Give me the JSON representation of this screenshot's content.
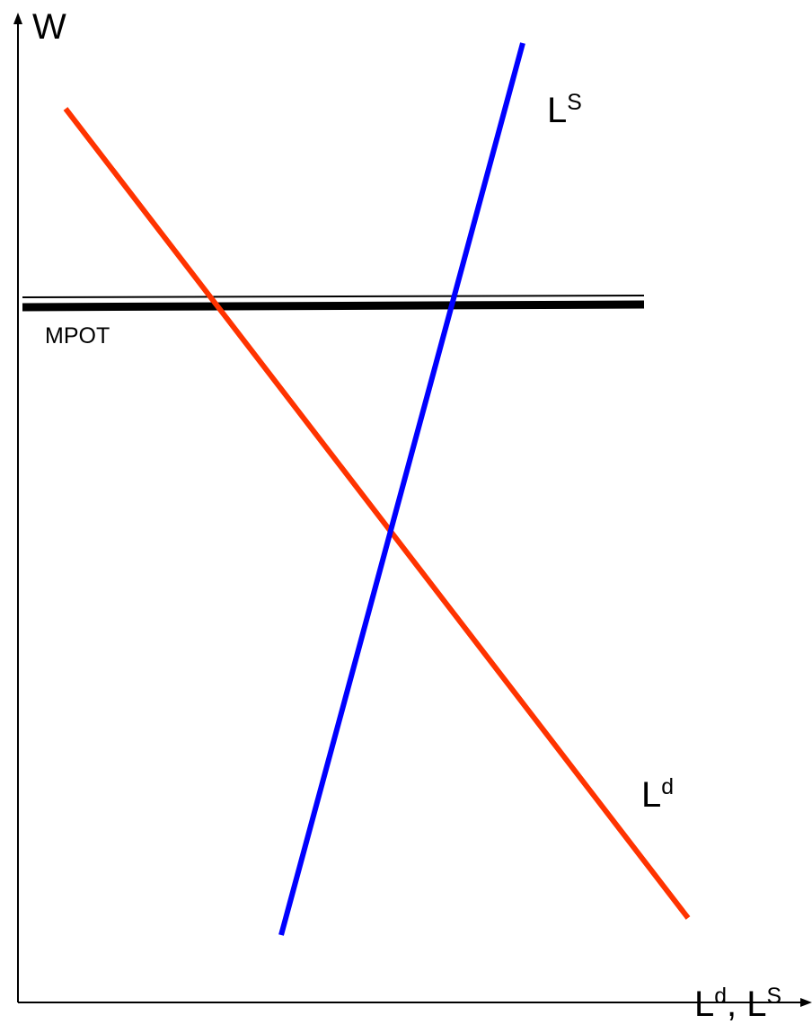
{
  "axes": {
    "y_label": "W",
    "x_label_main": "L",
    "x_label_sup": "d",
    "x_label_sep": ", L",
    "x_label_sup2": "S"
  },
  "curves": {
    "supply": {
      "label_main": "L",
      "label_sup": "S",
      "color": "#0000ff"
    },
    "demand": {
      "label_main": "L",
      "label_sup": "d",
      "color": "#ff3300"
    }
  },
  "wage_floor": {
    "label": "MPOT",
    "color": "#000000"
  }
}
